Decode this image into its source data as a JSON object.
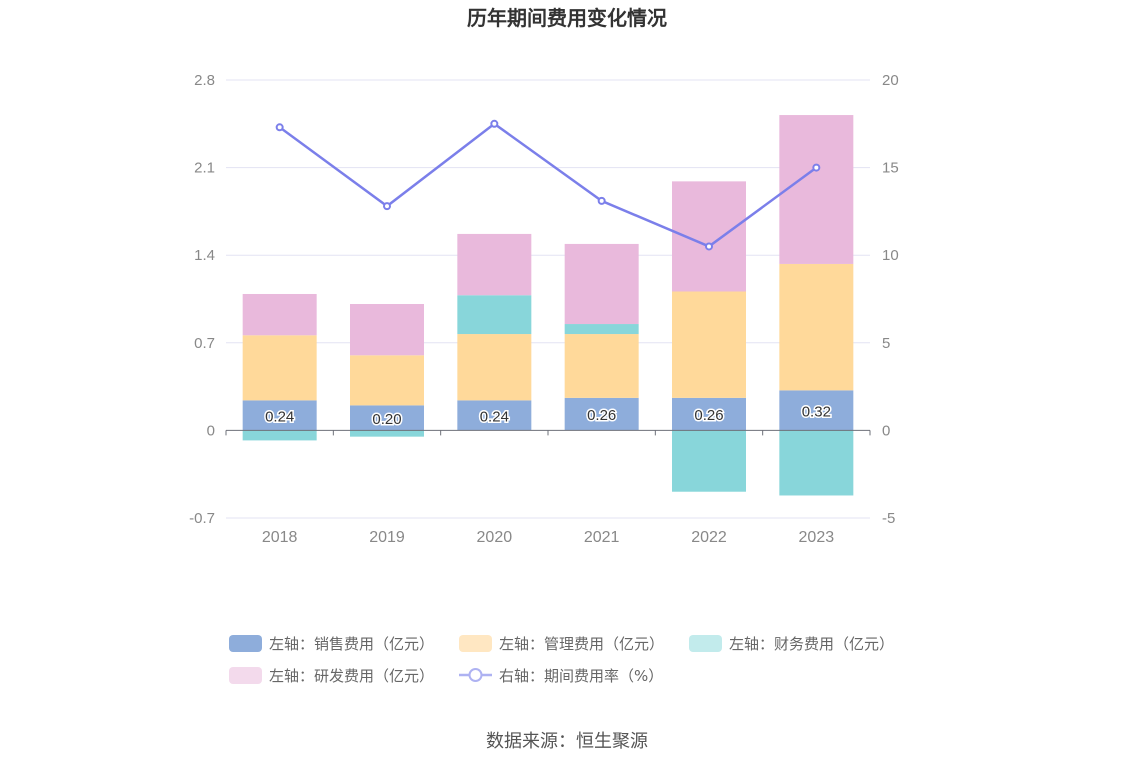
{
  "source": "数据来源：恒生聚源",
  "chart_data": {
    "type": "bar",
    "title": "历年期间费用变化情况",
    "categories": [
      "2018",
      "2019",
      "2020",
      "2021",
      "2022",
      "2023"
    ],
    "left_axis": {
      "ylim": [
        -0.7,
        2.8
      ],
      "ticks": [
        "2.8",
        "2.1",
        "1.4",
        "0.7",
        "0",
        "-0.7"
      ],
      "tick_values": [
        2.8,
        2.1,
        1.4,
        0.7,
        0,
        -0.7
      ]
    },
    "right_axis": {
      "ylim": [
        -5,
        20
      ],
      "ticks": [
        "20",
        "15",
        "10",
        "5",
        "0",
        "-5"
      ],
      "tick_values": [
        20,
        15,
        10,
        5,
        0,
        -5
      ]
    },
    "series": [
      {
        "name": "左轴：销售费用（亿元）",
        "type": "bar",
        "axis": "left",
        "color": "#8EADDB",
        "values": [
          0.24,
          0.2,
          0.24,
          0.26,
          0.26,
          0.32
        ],
        "labels": [
          "0.24",
          "0.20",
          "0.24",
          "0.26",
          "0.26",
          "0.32"
        ]
      },
      {
        "name": "左轴：管理费用（亿元）",
        "type": "bar",
        "axis": "left",
        "color": "#FFD99A",
        "values": [
          0.52,
          0.4,
          0.53,
          0.51,
          0.85,
          1.01
        ]
      },
      {
        "name": "左轴：财务费用（亿元）",
        "type": "bar",
        "axis": "left",
        "color": "#88D6DA",
        "values": [
          -0.08,
          -0.05,
          0.31,
          0.08,
          -0.49,
          -0.52
        ]
      },
      {
        "name": "左轴：研发费用（亿元）",
        "type": "bar",
        "axis": "left",
        "color": "#E9B9DC",
        "values": [
          0.33,
          0.41,
          0.49,
          0.64,
          0.88,
          1.19
        ]
      },
      {
        "name": "右轴：期间费用率（%）",
        "type": "line",
        "axis": "right",
        "color": "#7B7FEA",
        "values": [
          17.3,
          12.8,
          17.5,
          13.1,
          10.5,
          15.0
        ]
      }
    ],
    "legend_position": "bottom",
    "grid": true
  }
}
